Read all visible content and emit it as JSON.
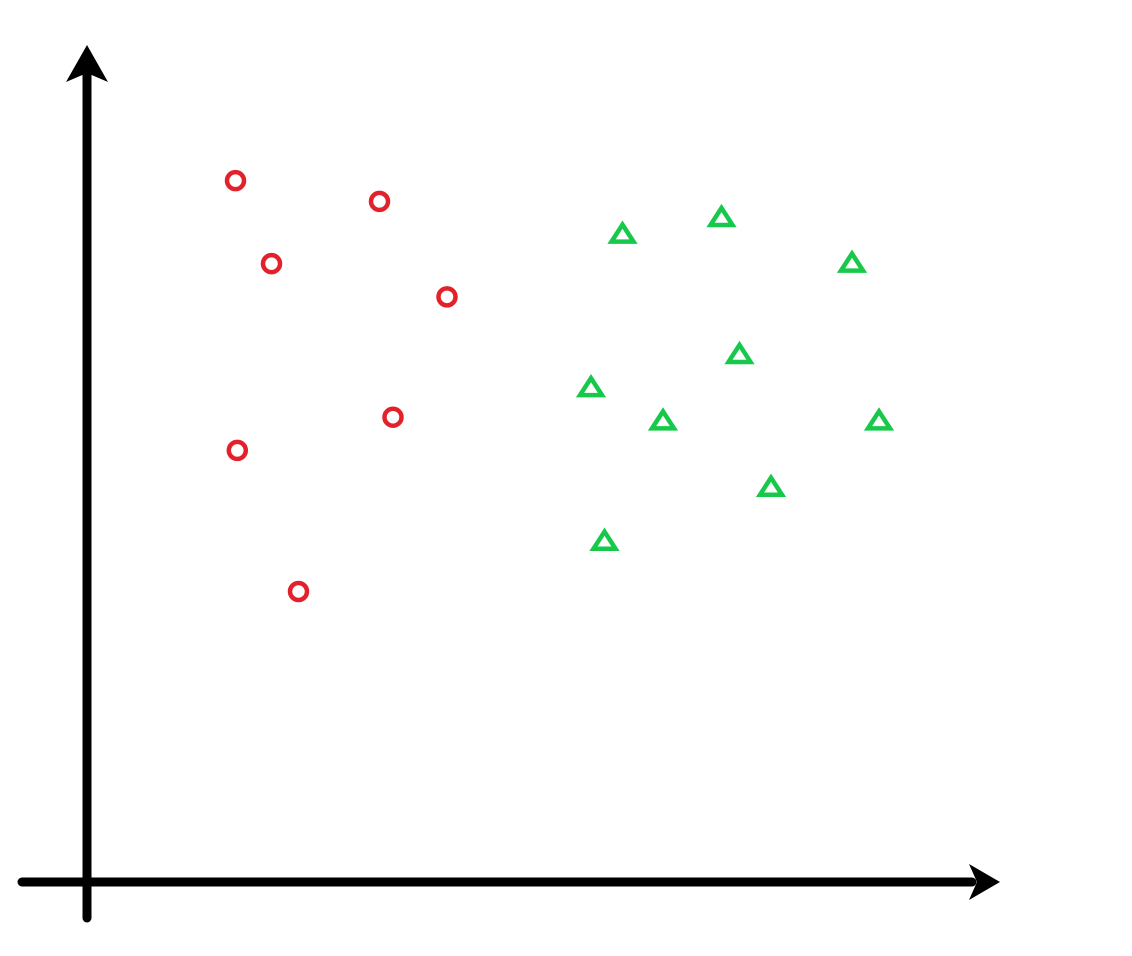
{
  "chart_data": {
    "type": "scatter",
    "title": "",
    "xlabel": "",
    "ylabel": "",
    "grid": false,
    "legend": "none",
    "xlim": [
      0,
      10
    ],
    "ylim": [
      0,
      10
    ],
    "series": [
      {
        "marker": "circle",
        "color": "#e3212b",
        "points": [
          [
            1.65,
            8.45
          ],
          [
            3.25,
            8.2
          ],
          [
            2.05,
            7.45
          ],
          [
            4.0,
            7.05
          ],
          [
            1.67,
            5.2
          ],
          [
            3.4,
            5.6
          ],
          [
            2.35,
            3.5
          ]
        ]
      },
      {
        "marker": "triangle",
        "color": "#17c94a",
        "points": [
          [
            5.95,
            7.8
          ],
          [
            7.05,
            8.0
          ],
          [
            8.5,
            7.45
          ],
          [
            7.25,
            6.35
          ],
          [
            5.6,
            5.95
          ],
          [
            6.4,
            5.55
          ],
          [
            8.8,
            5.55
          ],
          [
            7.6,
            4.75
          ],
          [
            5.75,
            4.1
          ]
        ]
      }
    ]
  }
}
